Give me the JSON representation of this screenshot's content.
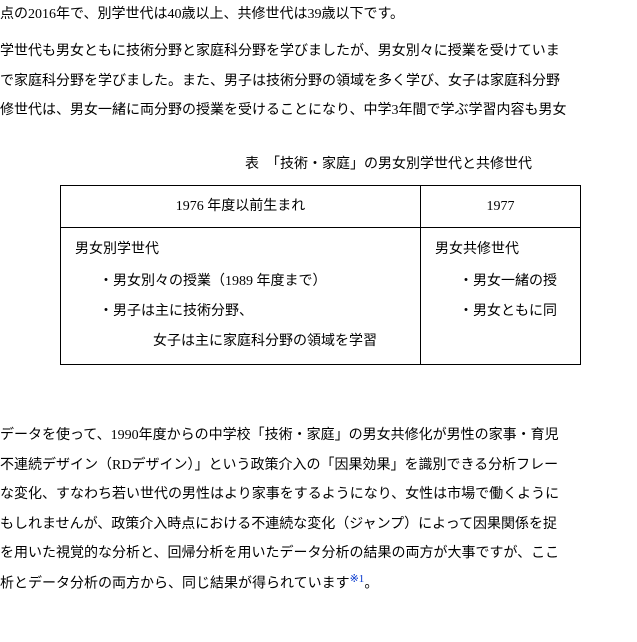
{
  "para1_line1": "点の2016年で、別学世代は40歳以上、共修世代は39歳以下です。",
  "para2_line1": "学世代も男女ともに技術分野と家庭科分野を学びましたが、男女別々に授業を受けていま",
  "para2_line2": "で家庭科分野を学びました。また、男子は技術分野の領域を多く学び、女子は家庭科分野",
  "para2_line3": "修世代は、男女一緒に両分野の授業を受けることになり、中学3年間で学ぶ学習内容も男女",
  "table": {
    "caption": "表　「技術・家庭」の男女別学世代と共修世代",
    "header_col1": "1976 年度以前生まれ",
    "header_col2": "1977",
    "cell1": {
      "title": "男女別学世代",
      "bullet1": "・男女別々の授業（1989 年度まで）",
      "bullet2": "・男子は主に技術分野、",
      "bullet3": "女子は主に家庭科分野の領域を学習"
    },
    "cell2": {
      "title": "男女共修世代",
      "bullet1": "・男女一緒の授",
      "bullet2": "・男女ともに同"
    }
  },
  "para3_line1": "データを使って、1990年度からの中学校「技術・家庭」の男女共修化が男性の家事・育児",
  "para3_line2": "不連続デザイン（RDデザイン）」という政策介入の「因果効果」を識別できる分析フレー",
  "para3_line3": "な変化、すなわち若い世代の男性はより家事をするようになり、女性は市場で働くように",
  "para3_line4": "もしれませんが、政策介入時点における不連続な変化（ジャンプ）によって因果関係を捉",
  "para3_line5": "を用いた視覚的な分析と、回帰分析を用いたデータ分析の結果の両方が大事ですが、ここ",
  "para3_line6a": "析とデータ分析の両方から、同じ結果が得られています",
  "footnote_ref": "※1",
  "para3_line6b": "。"
}
